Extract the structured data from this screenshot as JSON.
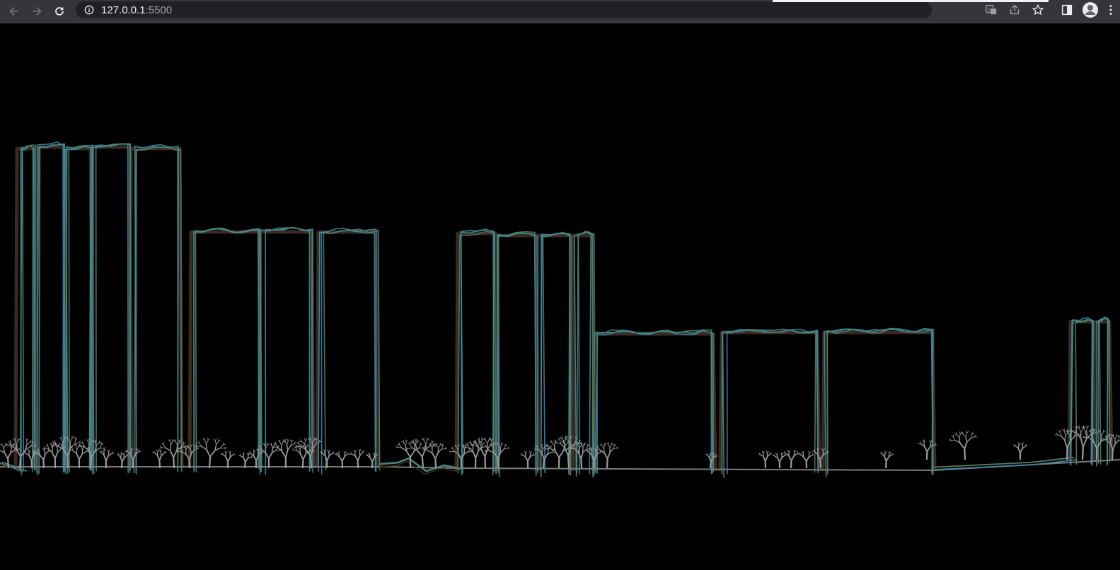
{
  "browser": {
    "url_host": "127.0.0.1",
    "url_port": ":5500",
    "icons": {
      "back": "arrow-left-icon",
      "forward": "arrow-right-icon",
      "reload": "reload-icon",
      "site_info": "info-icon",
      "translate": "translate-icon",
      "share": "share-icon",
      "bookmark": "star-icon",
      "side_panel": "side-panel-icon",
      "profile": "avatar-icon",
      "menu": "kebab-menu-icon"
    }
  },
  "colors": {
    "background": "#000000",
    "building_brown": "#3b2a22",
    "sketch_blue": "#3a86a8",
    "sketch_green": "#5a7e5a",
    "sketch_teal": "#3f8f99",
    "ground_gray": "#7a7a7a",
    "tree_gray": "#9a9a9a"
  }
}
